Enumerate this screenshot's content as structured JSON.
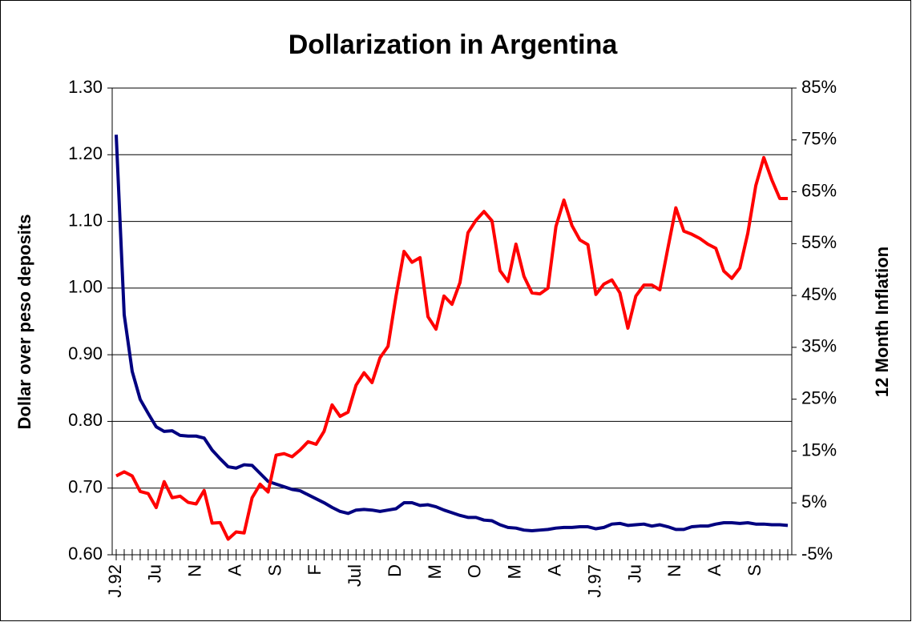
{
  "chart_data": {
    "type": "line",
    "title": "Dollarization in Argentina",
    "ylabel": "Dollar over peso deposits",
    "y2label": "12 Month Inflation",
    "categories": [
      "J.92",
      null,
      null,
      null,
      null,
      "Ju",
      null,
      null,
      null,
      null,
      "N",
      null,
      null,
      null,
      null,
      "A",
      null,
      null,
      null,
      null,
      "S",
      null,
      null,
      null,
      null,
      "F",
      null,
      null,
      null,
      null,
      "Jul",
      null,
      null,
      null,
      null,
      "D",
      null,
      null,
      null,
      null,
      "M",
      null,
      null,
      null,
      null,
      "O",
      null,
      null,
      null,
      null,
      "M",
      null,
      null,
      null,
      null,
      "A",
      null,
      null,
      null,
      null,
      "J.97",
      null,
      null,
      null,
      null,
      "Ju",
      null,
      null,
      null,
      null,
      "N",
      null,
      null,
      null,
      null,
      "A",
      null,
      null,
      null,
      null,
      "S",
      null,
      null,
      null,
      null
    ],
    "series": [
      {
        "color": "#000080",
        "axis": "y",
        "values": [
          1.23,
          0.96,
          0.875,
          0.833,
          0.812,
          0.792,
          0.785,
          0.786,
          0.779,
          0.778,
          0.778,
          0.775,
          0.757,
          0.744,
          0.732,
          0.73,
          0.735,
          0.734,
          0.722,
          0.71,
          0.706,
          0.702,
          0.698,
          0.696,
          0.69,
          0.684,
          0.678,
          0.671,
          0.665,
          0.662,
          0.667,
          0.668,
          0.667,
          0.665,
          0.667,
          0.669,
          0.678,
          0.678,
          0.674,
          0.675,
          0.672,
          0.667,
          0.663,
          0.659,
          0.656,
          0.656,
          0.652,
          0.651,
          0.645,
          0.641,
          0.64,
          0.637,
          0.636,
          0.637,
          0.638,
          0.64,
          0.641,
          0.641,
          0.642,
          0.642,
          0.639,
          0.641,
          0.646,
          0.647,
          0.644,
          0.645,
          0.646,
          0.643,
          0.645,
          0.642,
          0.638,
          0.638,
          0.642,
          0.643,
          0.643,
          0.646,
          0.648,
          0.648,
          0.647,
          0.648,
          0.646,
          0.646,
          0.645,
          0.645,
          0.644
        ]
      },
      {
        "color": "#ff0000",
        "axis": "y2",
        "values": [
          10.2,
          11,
          10.2,
          7.2,
          6.8,
          4.1,
          9.1,
          6,
          6.3,
          5.1,
          4.8,
          7.4,
          1.1,
          1.2,
          -2,
          -0.6,
          -0.8,
          6,
          8.6,
          7.1,
          14.2,
          14.5,
          13.9,
          15.2,
          16.8,
          16.3,
          18.8,
          23.9,
          21.7,
          22.5,
          27.7,
          30.1,
          28.2,
          33,
          35.2,
          44.9,
          53.5,
          51.4,
          52.3,
          40.9,
          38.5,
          44.9,
          43.3,
          47.5,
          57.1,
          59.5,
          61.2,
          59.4,
          49.8,
          47.7,
          54.9,
          48.7,
          45.5,
          45.3,
          46.4,
          58.3,
          63.4,
          58.5,
          55.7,
          54.8,
          45.2,
          47.2,
          48,
          45.5,
          38.7,
          44.9,
          47,
          47,
          46.1,
          54.1,
          61.9,
          57.4,
          56.8,
          56,
          54.9,
          54.1,
          49.7,
          48.3,
          50.3,
          57,
          66.2,
          71.6,
          67.3,
          63.7,
          63.7
        ]
      }
    ],
    "ylim": [
      0.6,
      1.3
    ],
    "yticks": [
      {
        "value": 0.6,
        "label": "0.60"
      },
      {
        "value": 0.7,
        "label": "0.70"
      },
      {
        "value": 0.8,
        "label": "0.80"
      },
      {
        "value": 0.9,
        "label": "0.90"
      },
      {
        "value": 1.0,
        "label": "1.00"
      },
      {
        "value": 1.1,
        "label": "1.10"
      },
      {
        "value": 1.2,
        "label": "1.20"
      },
      {
        "value": 1.3,
        "label": "1.30"
      }
    ],
    "y2lim": [
      -5,
      85
    ],
    "y2ticks": [
      {
        "value": -5,
        "label": "-5%"
      },
      {
        "value": 5,
        "label": "5%"
      },
      {
        "value": 15,
        "label": "15%"
      },
      {
        "value": 25,
        "label": "25%"
      },
      {
        "value": 35,
        "label": "35%"
      },
      {
        "value": 45,
        "label": "45%"
      },
      {
        "value": 55,
        "label": "55%"
      },
      {
        "value": 65,
        "label": "65%"
      },
      {
        "value": 75,
        "label": "75%"
      },
      {
        "value": 85,
        "label": "85%"
      }
    ],
    "grid": true
  }
}
